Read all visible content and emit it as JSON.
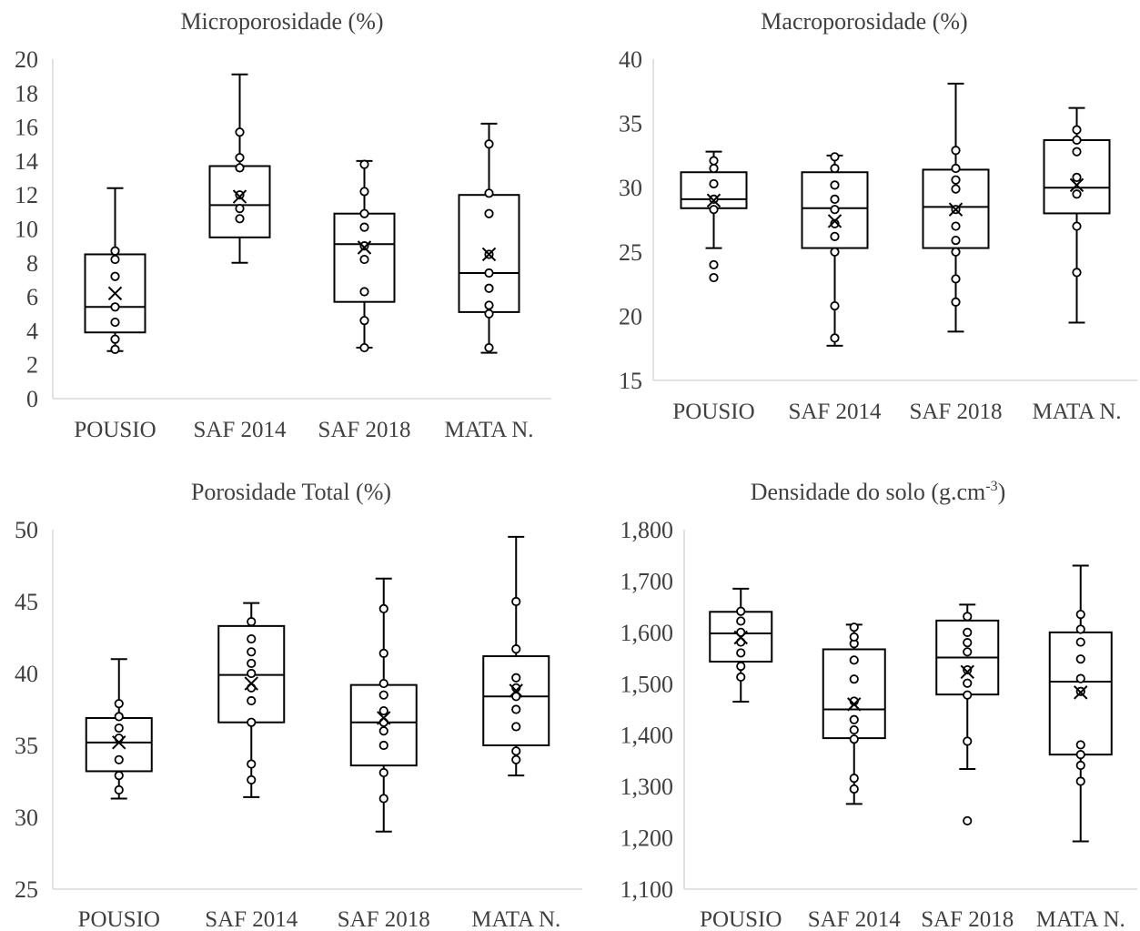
{
  "chart_data": [
    {
      "type": "boxplot",
      "title": "Microporosidade (%)",
      "categories": [
        "POUSIO",
        "SAF 2014",
        "SAF 2018",
        "MATA N."
      ],
      "ylim": [
        0,
        20
      ],
      "yticks": [
        "0",
        "2",
        "4",
        "6",
        "8",
        "10",
        "12",
        "14",
        "16",
        "18",
        "20"
      ],
      "grid": false,
      "boxes": [
        {
          "min": 2.8,
          "q1": 3.9,
          "median": 5.4,
          "q3": 8.5,
          "max": 12.4,
          "mean": 6.2,
          "points": [
            2.9,
            3.5,
            4.5,
            5.4,
            7.2,
            8.2,
            8.7
          ]
        },
        {
          "min": 8.0,
          "q1": 9.5,
          "median": 11.4,
          "q3": 13.7,
          "max": 19.1,
          "mean": 11.9,
          "points": [
            10.6,
            11.2,
            12.0,
            13.6,
            14.2,
            15.7
          ]
        },
        {
          "min": 3.0,
          "q1": 5.7,
          "median": 9.1,
          "q3": 10.9,
          "max": 14.0,
          "mean": 8.9,
          "points": [
            3.0,
            4.6,
            6.3,
            8.2,
            9.0,
            10.1,
            10.9,
            12.2,
            13.8
          ]
        },
        {
          "min": 2.7,
          "q1": 5.1,
          "median": 7.4,
          "q3": 12.0,
          "max": 16.2,
          "mean": 8.5,
          "points": [
            3.0,
            5.0,
            5.5,
            6.5,
            7.4,
            8.5,
            10.9,
            12.1,
            15.0
          ]
        }
      ]
    },
    {
      "type": "boxplot",
      "title": "Macroporosidade (%)",
      "categories": [
        "POUSIO",
        "SAF 2014",
        "SAF 2018",
        "MATA N."
      ],
      "ylim": [
        15,
        40
      ],
      "yticks": [
        "15",
        "20",
        "25",
        "30",
        "35",
        "40"
      ],
      "grid": false,
      "boxes": [
        {
          "min": 25.3,
          "q1": 28.4,
          "median": 29.1,
          "q3": 31.2,
          "max": 32.8,
          "mean": 29.0,
          "points": [
            23.0,
            24.0,
            28.3,
            29.1,
            30.3,
            31.5,
            32.1
          ]
        },
        {
          "min": 17.7,
          "q1": 25.3,
          "median": 28.4,
          "q3": 31.2,
          "max": 32.5,
          "mean": 27.4,
          "points": [
            18.3,
            20.8,
            25.0,
            26.2,
            27.2,
            28.3,
            29.1,
            30.2,
            31.5,
            32.4
          ]
        },
        {
          "min": 18.8,
          "q1": 25.3,
          "median": 28.5,
          "q3": 31.4,
          "max": 38.1,
          "mean": 28.3,
          "points": [
            21.1,
            22.9,
            25.0,
            25.9,
            27.0,
            28.3,
            29.9,
            30.6,
            31.5,
            32.9
          ]
        },
        {
          "min": 19.5,
          "q1": 28.0,
          "median": 30.0,
          "q3": 33.7,
          "max": 36.2,
          "mean": 30.2,
          "points": [
            23.4,
            27.0,
            29.5,
            30.8,
            32.8,
            33.7,
            34.5
          ]
        }
      ]
    },
    {
      "type": "boxplot",
      "title": "Porosidade Total (%)",
      "categories": [
        "POUSIO",
        "SAF 2014",
        "SAF 2018",
        "MATA N."
      ],
      "ylim": [
        25,
        50
      ],
      "yticks": [
        "25",
        "30",
        "35",
        "40",
        "45",
        "50"
      ],
      "grid": false,
      "boxes": [
        {
          "min": 31.3,
          "q1": 33.2,
          "median": 35.2,
          "q3": 36.9,
          "max": 41.0,
          "mean": 35.2,
          "points": [
            31.9,
            32.9,
            34.0,
            35.5,
            36.2,
            37.0,
            37.9
          ]
        },
        {
          "min": 31.4,
          "q1": 36.6,
          "median": 39.9,
          "q3": 43.3,
          "max": 44.9,
          "mean": 39.3,
          "points": [
            32.6,
            33.7,
            36.6,
            38.1,
            39.0,
            40.0,
            40.7,
            41.5,
            42.4,
            43.6
          ]
        },
        {
          "min": 29.0,
          "q1": 33.6,
          "median": 36.6,
          "q3": 39.2,
          "max": 46.6,
          "mean": 36.9,
          "points": [
            31.3,
            33.1,
            35.0,
            36.0,
            36.6,
            37.4,
            38.5,
            39.3,
            41.4,
            44.5
          ]
        },
        {
          "min": 32.9,
          "q1": 35.0,
          "median": 38.4,
          "q3": 41.2,
          "max": 49.5,
          "mean": 38.8,
          "points": [
            34.0,
            34.6,
            36.3,
            37.5,
            38.4,
            39.0,
            39.7,
            41.7,
            45.0
          ]
        }
      ]
    },
    {
      "type": "boxplot",
      "title": "Densidade do solo (g.cm",
      "title_superscript": "-3",
      "title_suffix": ")",
      "categories": [
        "POUSIO",
        "SAF 2014",
        "SAF 2018",
        "MATA N."
      ],
      "ylim": [
        1.1,
        1.8
      ],
      "yticks": [
        "1,100",
        "1,200",
        "1,300",
        "1,400",
        "1,500",
        "1,600",
        "1,700",
        "1,800"
      ],
      "grid": false,
      "boxes": [
        {
          "min": 1.465,
          "q1": 1.543,
          "median": 1.598,
          "q3": 1.64,
          "max": 1.685,
          "mean": 1.59,
          "points": [
            1.513,
            1.534,
            1.56,
            1.581,
            1.6,
            1.622,
            1.641
          ]
        },
        {
          "min": 1.266,
          "q1": 1.394,
          "median": 1.45,
          "q3": 1.567,
          "max": 1.615,
          "mean": 1.46,
          "points": [
            1.295,
            1.316,
            1.392,
            1.41,
            1.43,
            1.466,
            1.509,
            1.546,
            1.578,
            1.591,
            1.61
          ]
        },
        {
          "min": 1.334,
          "q1": 1.479,
          "median": 1.551,
          "q3": 1.623,
          "max": 1.654,
          "mean": 1.523,
          "points": [
            1.233,
            1.388,
            1.478,
            1.501,
            1.527,
            1.562,
            1.58,
            1.6,
            1.631
          ]
        },
        {
          "min": 1.193,
          "q1": 1.362,
          "median": 1.504,
          "q3": 1.6,
          "max": 1.73,
          "mean": 1.483,
          "points": [
            1.31,
            1.341,
            1.362,
            1.381,
            1.485,
            1.51,
            1.548,
            1.581,
            1.606,
            1.635
          ]
        }
      ]
    }
  ]
}
